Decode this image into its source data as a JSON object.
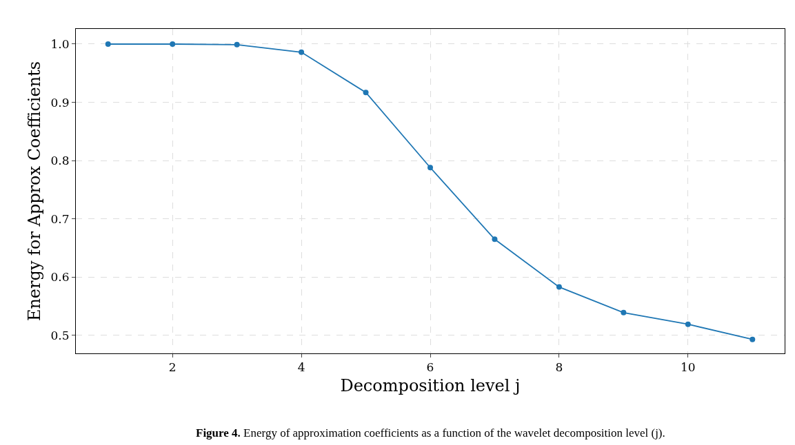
{
  "chart_data": {
    "type": "line",
    "xlabel": "Decomposition level j",
    "ylabel": "Energy for Approx Coefficients",
    "x": [
      1,
      2,
      3,
      4,
      5,
      6,
      7,
      8,
      9,
      10,
      11
    ],
    "series": [
      {
        "color": "#1f77b4",
        "values": [
          1.0,
          1.0,
          0.999,
          0.986,
          0.917,
          0.788,
          0.665,
          0.583,
          0.539,
          0.519,
          0.493
        ]
      }
    ],
    "xlim": [
      0.5,
      11.5
    ],
    "xticks": [
      2,
      4,
      6,
      8,
      10
    ],
    "ylim": [
      0.469,
      1.026
    ],
    "yticks": [
      {
        "value": 0.5,
        "label": "0.5"
      },
      {
        "value": 0.6,
        "label": "0.6"
      },
      {
        "value": 0.7,
        "label": "0.7"
      },
      {
        "value": 0.8,
        "label": "0.8"
      },
      {
        "value": 0.9,
        "label": "0.9"
      },
      {
        "value": 1.0,
        "label": "1.0"
      }
    ],
    "grid": true,
    "marker": "circle",
    "line_style": "solid",
    "legend": false,
    "annotations": [
      "Figure 4.",
      "Energy of approximation coefficients as a function of the wavelet decomposition level (j)."
    ]
  }
}
